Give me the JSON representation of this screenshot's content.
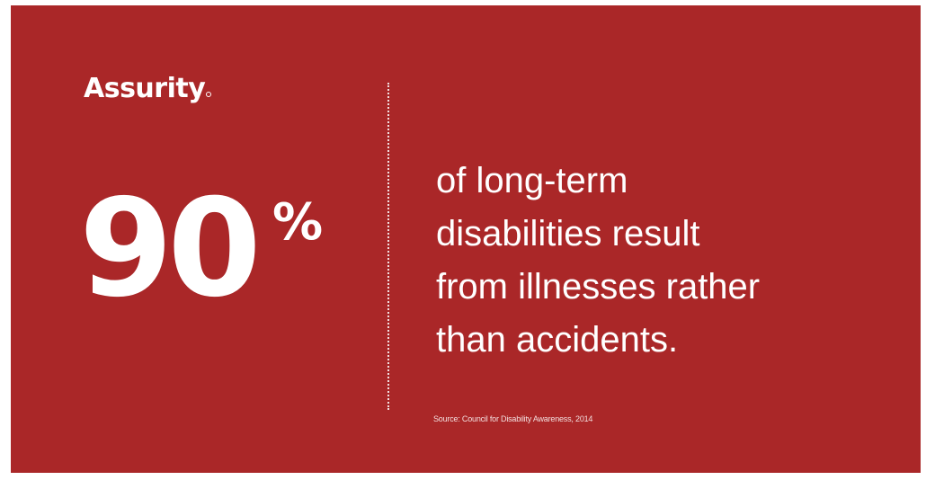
{
  "brand": {
    "logo_text": "Assurity"
  },
  "stat": {
    "number": "90",
    "unit": "%",
    "lines": [
      "of long-term",
      "disabilities result",
      "from illnesses rather",
      "than accidents."
    ]
  },
  "source": "Source: Council for Disability Awareness, 2014",
  "colors": {
    "background": "#aa2728",
    "text": "#ffffff"
  }
}
